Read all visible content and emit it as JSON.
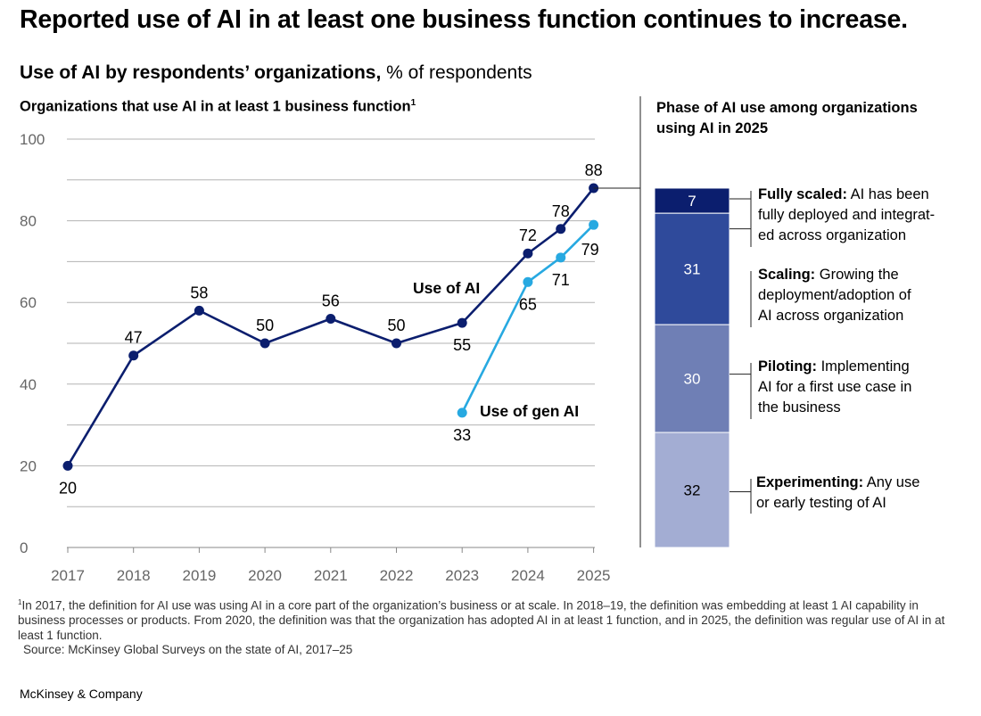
{
  "title": "Reported use of AI in at least one business function continues to increase.",
  "subtitle": {
    "bold": "Use of AI by respondents’ organizations,",
    "rest": " % of respondents"
  },
  "left_heading": {
    "text": "Organizations that use AI in at least 1 business function",
    "sup": "1"
  },
  "right_heading": "Phase of AI use among organizations using AI in 2025",
  "footnote": {
    "marker": "1",
    "text": "In 2017, the definition for AI use was using AI in a core part of the organization’s business or at scale. In 2018–19, the definition was embedding at least 1 AI capability in business processes or products. From 2020, the definition was that the organization has adopted AI in at least 1 function, and in 2025, the definition was regular use of AI in at least 1 function.",
    "source": "Source: McKinsey Global Surveys on the state of AI, 2017–25"
  },
  "brand": "McKinsey & Company",
  "colors": {
    "ai": "#0b1e6e",
    "genai": "#27a9e1",
    "grid": "#b3b3b3",
    "axis_text": "#666666",
    "fully": "#0b1e6e",
    "scaling": "#2f4a9b",
    "piloting": "#6f7fb5",
    "experimenting": "#a3add3"
  },
  "chart_data": [
    {
      "type": "line",
      "x_ticks": [
        "2017",
        "2018",
        "2019",
        "2020",
        "2021",
        "2022",
        "2023",
        "2024",
        "2025"
      ],
      "ylim": [
        0,
        100
      ],
      "y_ticks": [
        0,
        20,
        40,
        60,
        80,
        100
      ],
      "grid": true,
      "series": [
        {
          "name": "Use of AI",
          "points": [
            [
              2017,
              20
            ],
            [
              2018,
              47
            ],
            [
              2019,
              58
            ],
            [
              2020,
              50
            ],
            [
              2021,
              56
            ],
            [
              2022,
              50
            ],
            [
              2023,
              55
            ],
            [
              2024,
              72
            ],
            [
              2024.5,
              78
            ],
            [
              2025,
              88
            ]
          ],
          "labels": [
            "20",
            "47",
            "58",
            "50",
            "56",
            "50",
            "55",
            "72",
            "78",
            "88"
          ]
        },
        {
          "name": "Use of gen AI",
          "points": [
            [
              2023,
              33
            ],
            [
              2024,
              65
            ],
            [
              2024.5,
              71
            ],
            [
              2025,
              79
            ]
          ],
          "labels": [
            "33",
            "65",
            "71",
            "79"
          ]
        }
      ]
    },
    {
      "type": "bar",
      "stacked": true,
      "title": "Phase of AI use among organizations using AI in 2025",
      "segments": [
        {
          "name": "Fully scaled",
          "value": 7,
          "desc": "AI has been fully deployed and integrated across organization",
          "lines": [
            "AI has been",
            "fully deployed and integrat-",
            "ed across organization"
          ]
        },
        {
          "name": "Scaling",
          "value": 31,
          "desc": "Growing the deployment/adoption of AI across organization",
          "lines": [
            "Growing the",
            "deployment/adoption of",
            "AI across organization"
          ]
        },
        {
          "name": "Piloting",
          "value": 30,
          "desc": "Implementing AI for a first use case in the business",
          "lines": [
            "Implementing",
            "AI for a first use case in",
            "the business"
          ]
        },
        {
          "name": "Experimenting",
          "value": 32,
          "desc": "Any use or early testing of AI",
          "lines": [
            "Any use",
            "or early testing of AI"
          ]
        }
      ]
    }
  ]
}
